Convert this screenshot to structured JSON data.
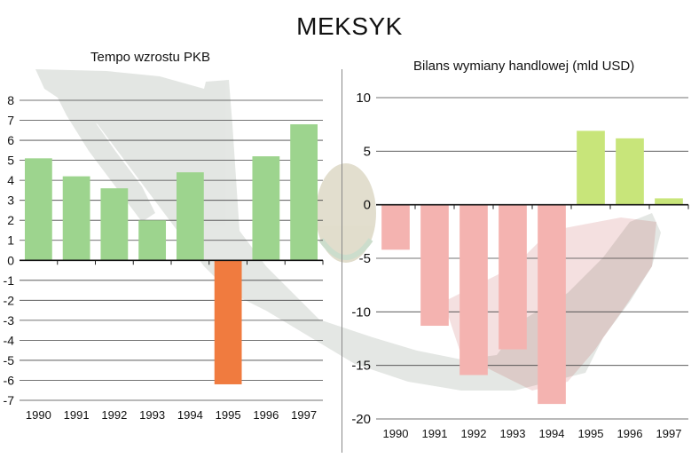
{
  "title": "MEKSYK",
  "colors": {
    "positive": "#9dd48e",
    "negative_left": "#f07b3f",
    "negative_right": "#f4b3b0",
    "positive_right": "#c8e57a",
    "grid": "#444444"
  },
  "chart_data": [
    {
      "type": "bar",
      "title": "Tempo wzrostu PKB",
      "xlabel": "",
      "ylabel": "",
      "categories": [
        "1990",
        "1991",
        "1992",
        "1993",
        "1994",
        "1995",
        "1996",
        "1997"
      ],
      "values": [
        5.1,
        4.2,
        3.6,
        2.0,
        4.4,
        -6.2,
        5.2,
        6.8
      ],
      "ylim": [
        -7,
        8
      ],
      "yticks": [
        "8",
        "7",
        "6",
        "5",
        "4",
        "3",
        "2",
        "1",
        "0",
        "-1",
        "-2",
        "-3",
        "-4",
        "-5",
        "-6",
        "-7"
      ],
      "grid": true
    },
    {
      "type": "bar",
      "title": "Bilans wymiany handlowej (mld USD)",
      "xlabel": "",
      "ylabel": "",
      "categories": [
        "1990",
        "1991",
        "1992",
        "1993",
        "1994",
        "1995",
        "1996",
        "1997"
      ],
      "values": [
        -4.2,
        -11.3,
        -15.9,
        -13.5,
        -18.6,
        6.9,
        6.2,
        0.6
      ],
      "ylim": [
        -20,
        10
      ],
      "yticks": [
        "10",
        "5",
        "0",
        "-5",
        "-10",
        "-15",
        "-20"
      ],
      "grid": true
    }
  ]
}
